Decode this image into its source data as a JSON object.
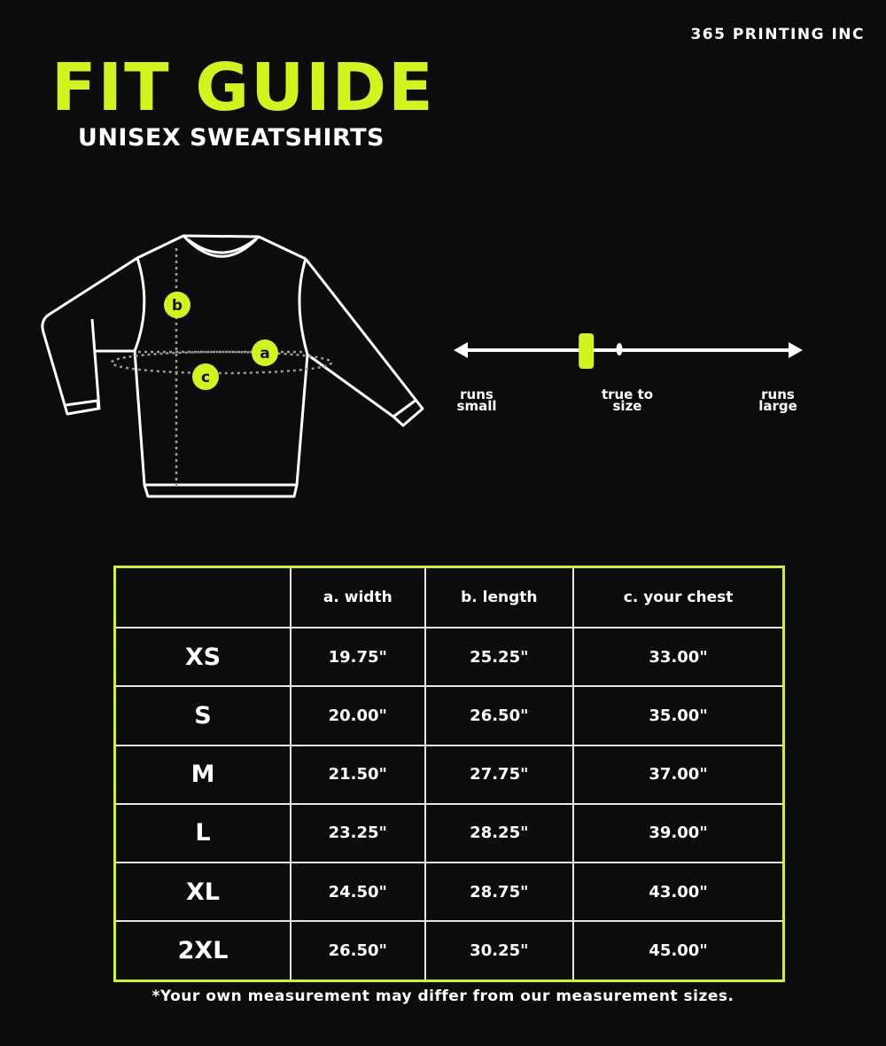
{
  "brand": "365 PRINTING INC",
  "title": "FIT GUIDE",
  "subtitle": "UNISEX SWEATSHIRTS",
  "colors": {
    "accent": "#d2f31c",
    "background": "#0c0c0c",
    "line": "#ffffff",
    "dotted": "#9a9a9a"
  },
  "diagram": {
    "markers": [
      "a",
      "b",
      "c"
    ]
  },
  "fit_scale": {
    "left_label": "runs small",
    "center_label": "true to size",
    "right_label": "runs large",
    "value_fraction": 0.38
  },
  "table": {
    "headers": [
      "",
      "a. width",
      "b. length",
      "c. your chest"
    ],
    "rows": [
      {
        "size": "XS",
        "width": "19.75\"",
        "length": "25.25\"",
        "chest": "33.00\""
      },
      {
        "size": "S",
        "width": "20.00\"",
        "length": "26.50\"",
        "chest": "35.00\""
      },
      {
        "size": "M",
        "width": "21.50\"",
        "length": "27.75\"",
        "chest": "37.00\""
      },
      {
        "size": "L",
        "width": "23.25\"",
        "length": "28.25\"",
        "chest": "39.00\""
      },
      {
        "size": "XL",
        "width": "24.50\"",
        "length": "28.75\"",
        "chest": "43.00\""
      },
      {
        "size": "2XL",
        "width": "26.50\"",
        "length": "30.25\"",
        "chest": "45.00\""
      }
    ]
  },
  "footnote": "*Your own measurement may differ from our measurement sizes."
}
